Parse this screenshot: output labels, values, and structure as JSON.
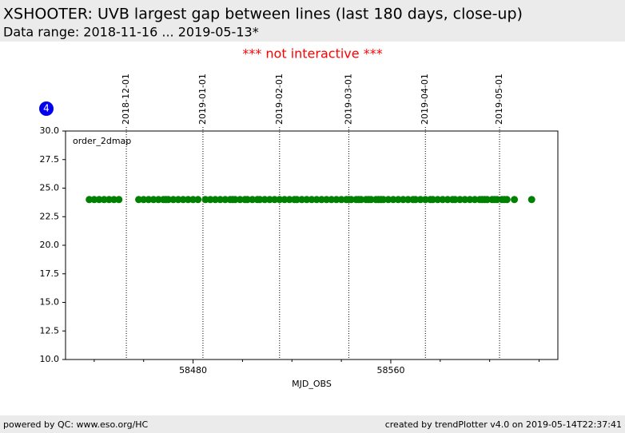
{
  "header": {
    "title": "XSHOOTER: UVB largest gap between lines (last 180 days, close-up)",
    "subtitle": "Data range: 2018-11-16 ... 2019-05-13*"
  },
  "notice": "*** not interactive ***",
  "badge": "4",
  "footer": {
    "left": "powered by QC: www.eso.org/HC",
    "right": "created by trendPlotter v4.0 on 2019-05-14T22:37:41"
  },
  "chart_data": {
    "type": "scatter",
    "annotation": "order_2dmap",
    "xlabel": "MJD_OBS",
    "color": "#008000",
    "x": [
      58438,
      58440,
      58442,
      58444,
      58446,
      58448,
      58450,
      58458,
      58460,
      58462,
      58464,
      58466,
      58468,
      58469,
      58470,
      58472,
      58474,
      58476,
      58478,
      58480,
      58482,
      58485,
      58487,
      58489,
      58491,
      58493,
      58495,
      58496,
      58497,
      58499,
      58501,
      58502,
      58504,
      58506,
      58507,
      58509,
      58511,
      58513,
      58515,
      58517,
      58519,
      58521,
      58522,
      58524,
      58526,
      58528,
      58530,
      58532,
      58534,
      58536,
      58538,
      58540,
      58542,
      58543,
      58544,
      58546,
      58547,
      58548,
      58550,
      58551,
      58552,
      58554,
      58555,
      58556,
      58557,
      58559,
      58561,
      58563,
      58565,
      58567,
      58569,
      58570,
      58572,
      58574,
      58576,
      58577,
      58579,
      58581,
      58583,
      58585,
      58586,
      58588,
      58590,
      58592,
      58594,
      58596,
      58597,
      58598,
      58599,
      58601,
      58602,
      58603,
      58605,
      58606,
      58607,
      58610,
      58617
    ],
    "values": [
      24,
      24,
      24,
      24,
      24,
      24,
      24,
      24,
      24,
      24,
      24,
      24,
      24,
      24,
      24,
      24,
      24,
      24,
      24,
      24,
      24,
      24,
      24,
      24,
      24,
      24,
      24,
      24,
      24,
      24,
      24,
      24,
      24,
      24,
      24,
      24,
      24,
      24,
      24,
      24,
      24,
      24,
      24,
      24,
      24,
      24,
      24,
      24,
      24,
      24,
      24,
      24,
      24,
      24,
      24,
      24,
      24,
      24,
      24,
      24,
      24,
      24,
      24,
      24,
      24,
      24,
      24,
      24,
      24,
      24,
      24,
      24,
      24,
      24,
      24,
      24,
      24,
      24,
      24,
      24,
      24,
      24,
      24,
      24,
      24,
      24,
      24,
      24,
      24,
      24,
      24,
      24,
      24,
      24,
      24,
      24,
      24
    ],
    "xlim": [
      58428.4,
      58627.6
    ],
    "ylim": [
      10,
      30
    ],
    "xticks": [
      58480,
      58560
    ],
    "xminorticks": [
      58440,
      58460,
      58500,
      58520,
      58540,
      58580,
      58600,
      58620
    ],
    "x2ticks": [
      {
        "value": 58453,
        "label": "2018-12-01"
      },
      {
        "value": 58484,
        "label": "2019-01-01"
      },
      {
        "value": 58515,
        "label": "2019-02-01"
      },
      {
        "value": 58543,
        "label": "2019-03-01"
      },
      {
        "value": 58574,
        "label": "2019-04-01"
      },
      {
        "value": 58604,
        "label": "2019-05-01"
      }
    ],
    "yticks": [
      {
        "value": 10,
        "label": "10.0"
      },
      {
        "value": 12.5,
        "label": "12.5"
      },
      {
        "value": 15,
        "label": "15.0"
      },
      {
        "value": 17.5,
        "label": "17.5"
      },
      {
        "value": 20,
        "label": "20.0"
      },
      {
        "value": 22.5,
        "label": "22.5"
      },
      {
        "value": 25,
        "label": "25.0"
      },
      {
        "value": 27.5,
        "label": "27.5"
      },
      {
        "value": 30,
        "label": "30.0"
      }
    ]
  }
}
